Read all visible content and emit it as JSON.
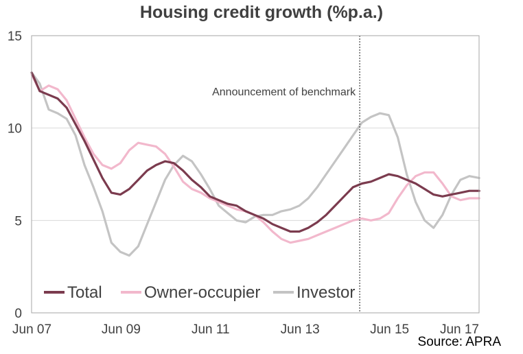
{
  "chart_data": {
    "type": "line",
    "title": "Housing credit growth (%p.a.)",
    "xlabel": "",
    "ylabel": "",
    "ylim": [
      0,
      15
    ],
    "yticks": [
      0,
      5,
      10,
      15
    ],
    "xlim": [
      2007.417,
      2017.417
    ],
    "xticks": [
      {
        "x": 2007.417,
        "label": "Jun 07"
      },
      {
        "x": 2009.417,
        "label": "Jun 09"
      },
      {
        "x": 2011.417,
        "label": "Jun 11"
      },
      {
        "x": 2013.417,
        "label": "Jun 13"
      },
      {
        "x": 2015.417,
        "label": "Jun 15"
      },
      {
        "x": 2017.417,
        "label": "Jun 17"
      }
    ],
    "grid": true,
    "legend": "bottom-left",
    "annotation": {
      "text": "Announcement  of benchmark",
      "x": 2014.75
    },
    "series": [
      {
        "name": "Total",
        "color": "#7b3b4e",
        "points": [
          [
            2007.42,
            13.0
          ],
          [
            2007.6,
            12.0
          ],
          [
            2007.8,
            11.8
          ],
          [
            2008.0,
            11.6
          ],
          [
            2008.2,
            11.1
          ],
          [
            2008.4,
            10.2
          ],
          [
            2008.6,
            9.3
          ],
          [
            2008.8,
            8.3
          ],
          [
            2009.0,
            7.3
          ],
          [
            2009.2,
            6.5
          ],
          [
            2009.4,
            6.4
          ],
          [
            2009.6,
            6.7
          ],
          [
            2009.8,
            7.2
          ],
          [
            2010.0,
            7.7
          ],
          [
            2010.2,
            8.0
          ],
          [
            2010.4,
            8.2
          ],
          [
            2010.6,
            8.1
          ],
          [
            2010.8,
            7.7
          ],
          [
            2011.0,
            7.2
          ],
          [
            2011.2,
            6.8
          ],
          [
            2011.4,
            6.3
          ],
          [
            2011.6,
            6.1
          ],
          [
            2011.8,
            5.9
          ],
          [
            2012.0,
            5.8
          ],
          [
            2012.2,
            5.5
          ],
          [
            2012.4,
            5.3
          ],
          [
            2012.6,
            5.1
          ],
          [
            2012.8,
            4.8
          ],
          [
            2013.0,
            4.6
          ],
          [
            2013.2,
            4.4
          ],
          [
            2013.4,
            4.4
          ],
          [
            2013.6,
            4.6
          ],
          [
            2013.8,
            4.9
          ],
          [
            2014.0,
            5.3
          ],
          [
            2014.2,
            5.8
          ],
          [
            2014.4,
            6.3
          ],
          [
            2014.6,
            6.8
          ],
          [
            2014.8,
            7.0
          ],
          [
            2015.0,
            7.1
          ],
          [
            2015.2,
            7.3
          ],
          [
            2015.4,
            7.5
          ],
          [
            2015.6,
            7.4
          ],
          [
            2015.8,
            7.2
          ],
          [
            2016.0,
            7.0
          ],
          [
            2016.2,
            6.7
          ],
          [
            2016.4,
            6.4
          ],
          [
            2016.6,
            6.3
          ],
          [
            2016.8,
            6.4
          ],
          [
            2017.0,
            6.5
          ],
          [
            2017.2,
            6.6
          ],
          [
            2017.42,
            6.6
          ]
        ]
      },
      {
        "name": "Owner-occupier",
        "color": "#f2b8cc",
        "points": [
          [
            2007.42,
            12.9
          ],
          [
            2007.6,
            12.0
          ],
          [
            2007.8,
            12.3
          ],
          [
            2008.0,
            12.1
          ],
          [
            2008.2,
            11.5
          ],
          [
            2008.4,
            10.5
          ],
          [
            2008.6,
            9.5
          ],
          [
            2008.8,
            8.6
          ],
          [
            2009.0,
            8.0
          ],
          [
            2009.2,
            7.8
          ],
          [
            2009.4,
            8.1
          ],
          [
            2009.6,
            8.8
          ],
          [
            2009.8,
            9.2
          ],
          [
            2010.0,
            9.1
          ],
          [
            2010.2,
            9.0
          ],
          [
            2010.4,
            8.6
          ],
          [
            2010.6,
            7.9
          ],
          [
            2010.8,
            7.1
          ],
          [
            2011.0,
            6.7
          ],
          [
            2011.2,
            6.5
          ],
          [
            2011.4,
            6.2
          ],
          [
            2011.6,
            6.0
          ],
          [
            2011.8,
            5.8
          ],
          [
            2012.0,
            5.6
          ],
          [
            2012.2,
            5.5
          ],
          [
            2012.4,
            5.3
          ],
          [
            2012.6,
            4.9
          ],
          [
            2012.8,
            4.4
          ],
          [
            2013.0,
            4.0
          ],
          [
            2013.2,
            3.8
          ],
          [
            2013.4,
            3.9
          ],
          [
            2013.6,
            4.0
          ],
          [
            2013.8,
            4.2
          ],
          [
            2014.0,
            4.4
          ],
          [
            2014.2,
            4.6
          ],
          [
            2014.4,
            4.8
          ],
          [
            2014.6,
            5.0
          ],
          [
            2014.8,
            5.1
          ],
          [
            2015.0,
            5.0
          ],
          [
            2015.2,
            5.1
          ],
          [
            2015.4,
            5.4
          ],
          [
            2015.6,
            6.2
          ],
          [
            2015.8,
            6.9
          ],
          [
            2016.0,
            7.4
          ],
          [
            2016.2,
            7.6
          ],
          [
            2016.4,
            7.6
          ],
          [
            2016.6,
            7.0
          ],
          [
            2016.8,
            6.3
          ],
          [
            2017.0,
            6.1
          ],
          [
            2017.2,
            6.2
          ],
          [
            2017.42,
            6.2
          ]
        ]
      },
      {
        "name": "Investor",
        "color": "#c4c4c4",
        "points": [
          [
            2007.42,
            13.0
          ],
          [
            2007.6,
            12.4
          ],
          [
            2007.8,
            11.0
          ],
          [
            2008.0,
            10.8
          ],
          [
            2008.2,
            10.5
          ],
          [
            2008.4,
            9.6
          ],
          [
            2008.6,
            8.0
          ],
          [
            2008.8,
            6.8
          ],
          [
            2009.0,
            5.5
          ],
          [
            2009.2,
            3.8
          ],
          [
            2009.4,
            3.3
          ],
          [
            2009.6,
            3.1
          ],
          [
            2009.8,
            3.6
          ],
          [
            2010.0,
            4.8
          ],
          [
            2010.2,
            6.0
          ],
          [
            2010.4,
            7.2
          ],
          [
            2010.6,
            8.0
          ],
          [
            2010.8,
            8.5
          ],
          [
            2011.0,
            8.2
          ],
          [
            2011.2,
            7.5
          ],
          [
            2011.4,
            6.7
          ],
          [
            2011.6,
            5.8
          ],
          [
            2011.8,
            5.4
          ],
          [
            2012.0,
            5.0
          ],
          [
            2012.2,
            4.9
          ],
          [
            2012.4,
            5.2
          ],
          [
            2012.6,
            5.3
          ],
          [
            2012.8,
            5.3
          ],
          [
            2013.0,
            5.5
          ],
          [
            2013.2,
            5.6
          ],
          [
            2013.4,
            5.8
          ],
          [
            2013.6,
            6.2
          ],
          [
            2013.8,
            6.8
          ],
          [
            2014.0,
            7.5
          ],
          [
            2014.2,
            8.2
          ],
          [
            2014.4,
            8.9
          ],
          [
            2014.6,
            9.6
          ],
          [
            2014.8,
            10.3
          ],
          [
            2015.0,
            10.6
          ],
          [
            2015.2,
            10.8
          ],
          [
            2015.4,
            10.7
          ],
          [
            2015.6,
            9.5
          ],
          [
            2015.8,
            7.5
          ],
          [
            2016.0,
            6.0
          ],
          [
            2016.2,
            5.0
          ],
          [
            2016.4,
            4.6
          ],
          [
            2016.6,
            5.3
          ],
          [
            2016.8,
            6.4
          ],
          [
            2017.0,
            7.2
          ],
          [
            2017.2,
            7.4
          ],
          [
            2017.42,
            7.3
          ]
        ]
      }
    ]
  },
  "source": "Source: APRA"
}
